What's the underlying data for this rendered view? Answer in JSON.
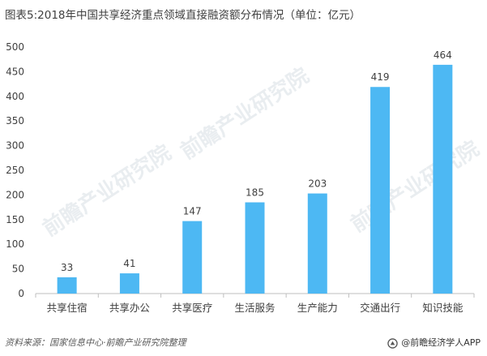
{
  "title": "图表5:2018年中国共享经济重点领域直接融资额分布情况（单位：亿元）",
  "source": "资料来源：国家信息中心·前瞻产业研究院整理",
  "brand": "@前瞻经济学人APP",
  "watermark": "前瞻产业研究院",
  "colors": {
    "bar": "#4db8f3",
    "axis": "#bfbfbf",
    "text": "#404040"
  },
  "chart_data": {
    "type": "bar",
    "categories": [
      "共享住宿",
      "共享办公",
      "共享医疗",
      "生活服务",
      "生产能力",
      "交通出行",
      "知识技能"
    ],
    "values": [
      33,
      41,
      147,
      185,
      203,
      419,
      464
    ],
    "ylim": [
      0,
      500
    ],
    "yticks": [
      0,
      50,
      100,
      150,
      200,
      250,
      300,
      350,
      400,
      450,
      500
    ],
    "grid": false,
    "data_labels": true
  }
}
